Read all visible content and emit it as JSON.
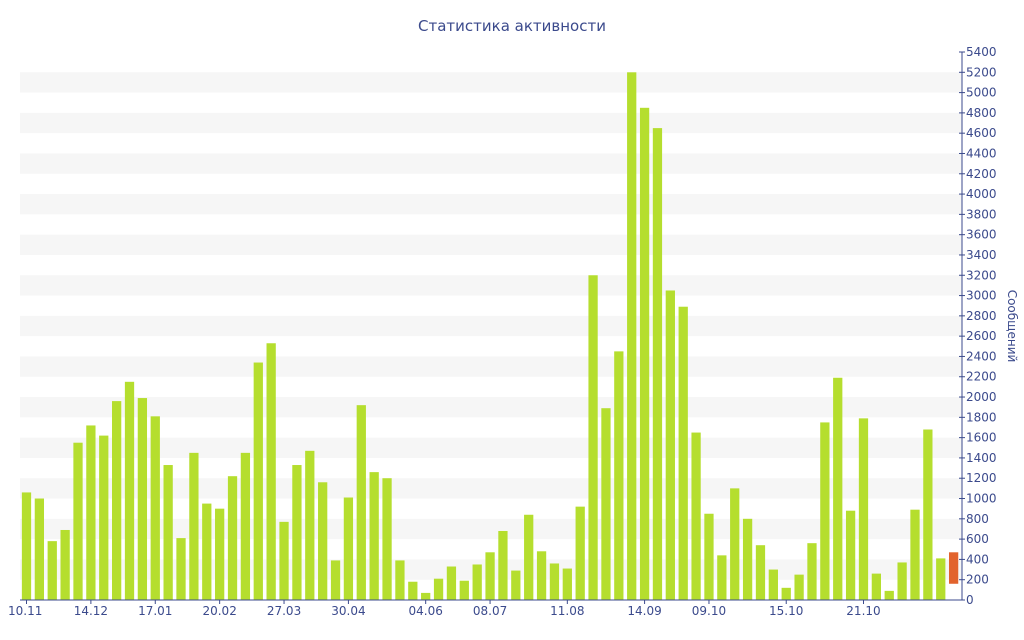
{
  "chart_data": {
    "type": "bar",
    "title": "Статистика активности",
    "ylabel": "Сообщений",
    "xlabel": "",
    "ylim": [
      0,
      5400
    ],
    "ytick_step": 200,
    "y_axis_position": "right",
    "grid": "alternating horizontal bands",
    "x_tick_labels": [
      {
        "index": 0,
        "label": "10.11"
      },
      {
        "index": 5,
        "label": "14.12"
      },
      {
        "index": 10,
        "label": "17.01"
      },
      {
        "index": 15,
        "label": "20.02"
      },
      {
        "index": 20,
        "label": "27.03"
      },
      {
        "index": 25,
        "label": "30.04"
      },
      {
        "index": 31,
        "label": "04.06"
      },
      {
        "index": 36,
        "label": "08.07"
      },
      {
        "index": 42,
        "label": "11.08"
      },
      {
        "index": 48,
        "label": "14.09"
      },
      {
        "index": 53,
        "label": "09.10"
      },
      {
        "index": 59,
        "label": "15.10"
      },
      {
        "index": 65,
        "label": "21.10"
      }
    ],
    "values": [
      1060,
      1000,
      580,
      690,
      1550,
      1720,
      1620,
      1960,
      2150,
      1990,
      1810,
      1330,
      610,
      1450,
      950,
      900,
      1220,
      1450,
      2340,
      2530,
      770,
      1330,
      1470,
      1160,
      390,
      1010,
      1920,
      1260,
      1200,
      390,
      180,
      70,
      210,
      330,
      190,
      350,
      470,
      680,
      290,
      840,
      480,
      360,
      310,
      920,
      3200,
      1890,
      2450,
      5200,
      4850,
      4650,
      3050,
      2890,
      1650,
      850,
      440,
      1100,
      800,
      540,
      300,
      120,
      250,
      560,
      1750,
      2190,
      880,
      1790,
      260,
      90,
      370,
      890,
      1680,
      410,
      470
    ],
    "last_bar_color": "#e2632d",
    "last_bar_base": 160,
    "colors": {
      "bar": "#b5de2e",
      "last": "#e2632d",
      "text": "#3b4a8c",
      "band": "#f6f6f6"
    }
  }
}
